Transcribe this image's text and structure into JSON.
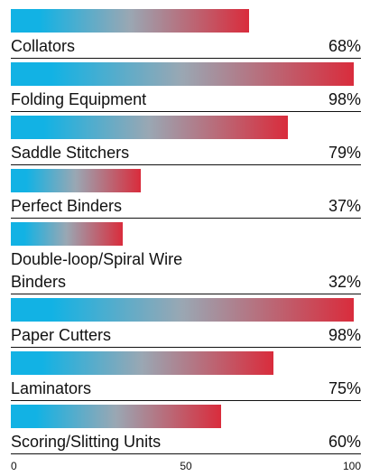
{
  "chart_data": {
    "type": "bar",
    "orientation": "horizontal",
    "categories": [
      "Collators",
      "Folding Equipment",
      "Saddle Stitchers",
      "Perfect Binders",
      "Double-loop/Spiral Wire Binders",
      "Paper Cutters",
      "Laminators",
      "Scoring/Slitting Units"
    ],
    "values": [
      68,
      98,
      79,
      37,
      32,
      98,
      75,
      60
    ],
    "value_labels": [
      "68%",
      "98%",
      "79%",
      "37%",
      "32%",
      "98%",
      "75%",
      "60%"
    ],
    "gradient": [
      "#12b2e4",
      "#9aa7b3",
      "#d92c3c"
    ],
    "xlim": [
      0,
      100
    ],
    "xticks": [
      0,
      50,
      100
    ]
  }
}
